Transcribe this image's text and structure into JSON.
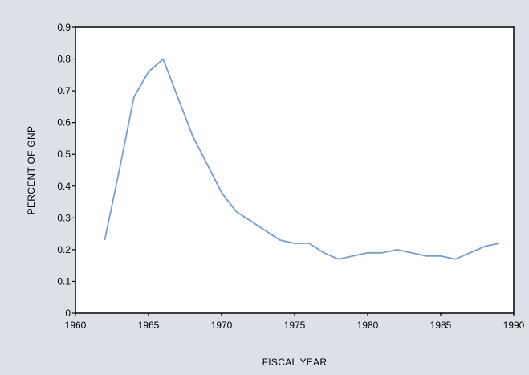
{
  "colors": {
    "background": "#dde1e7",
    "plot_area": "#ffffff",
    "frame": "#000000",
    "line": "#6f9fd8",
    "text": "#000000"
  },
  "chart_data": {
    "type": "line",
    "title": "",
    "xlabel": "FISCAL YEAR",
    "ylabel": "PERCENT OF GNP",
    "xlim": [
      1960,
      1990
    ],
    "ylim": [
      0,
      0.9
    ],
    "xticks": [
      1960,
      1965,
      1970,
      1975,
      1980,
      1985,
      1990
    ],
    "xtick_labels": [
      "1960",
      "1965",
      "1970",
      "1975",
      "1980",
      "1985",
      "1990"
    ],
    "yticks": [
      0,
      0.1,
      0.2,
      0.3,
      0.4,
      0.5,
      0.6,
      0.7,
      0.8,
      0.9
    ],
    "ytick_labels": [
      "0",
      "0.1",
      "0.2",
      "0.3",
      "0.4",
      "0.5",
      "0.6",
      "0.7",
      "0.8",
      "0.9"
    ],
    "grid": false,
    "legend": "none",
    "series": [
      {
        "x": [
          1962,
          1963,
          1964,
          1965,
          1966,
          1967,
          1968,
          1969,
          1970,
          1971,
          1972,
          1973,
          1974,
          1975,
          1976,
          1977,
          1978,
          1979,
          1980,
          1981,
          1982,
          1983,
          1984,
          1985,
          1986,
          1987,
          1988,
          1989
        ],
        "y": [
          0.23,
          0.45,
          0.68,
          0.76,
          0.8,
          0.68,
          0.56,
          0.47,
          0.38,
          0.32,
          0.29,
          0.26,
          0.23,
          0.22,
          0.22,
          0.19,
          0.17,
          0.18,
          0.19,
          0.19,
          0.2,
          0.19,
          0.18,
          0.18,
          0.17,
          0.19,
          0.21,
          0.22
        ]
      }
    ]
  }
}
